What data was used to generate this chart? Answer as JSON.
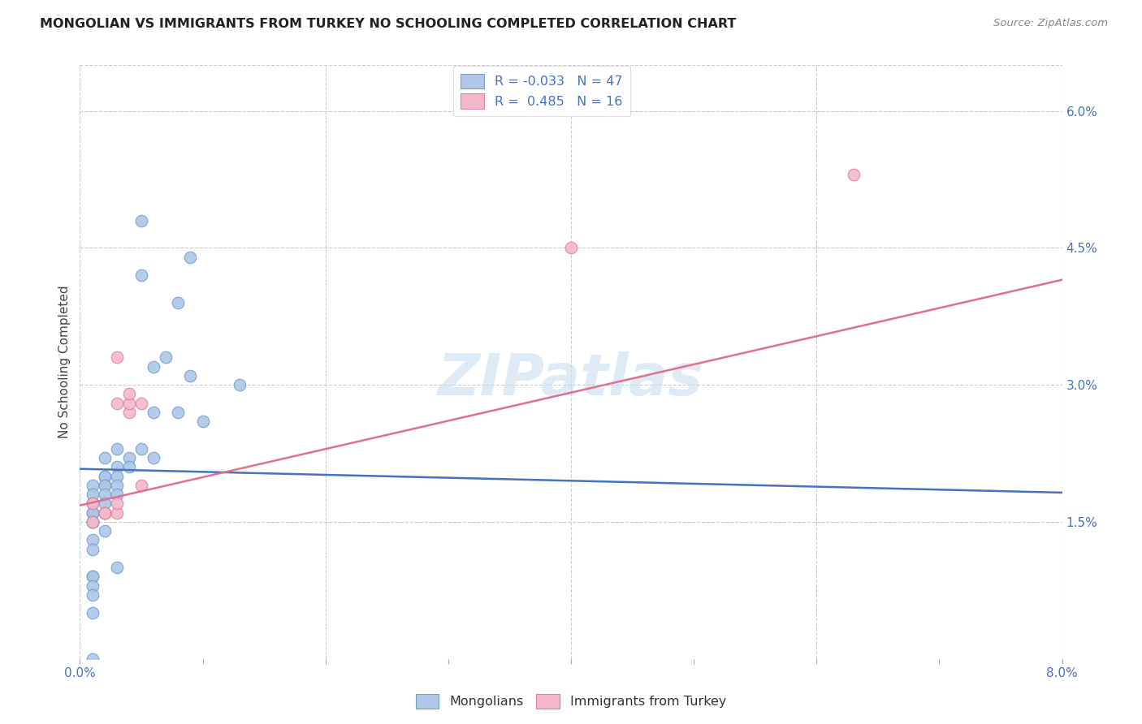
{
  "title": "MONGOLIAN VS IMMIGRANTS FROM TURKEY NO SCHOOLING COMPLETED CORRELATION CHART",
  "source": "Source: ZipAtlas.com",
  "ylabel": "No Schooling Completed",
  "xlim": [
    0.0,
    0.08
  ],
  "ylim": [
    0.0,
    0.065
  ],
  "xtick_positions": [
    0.0,
    0.01,
    0.02,
    0.03,
    0.04,
    0.05,
    0.06,
    0.07,
    0.08
  ],
  "xticklabels": [
    "0.0%",
    "",
    "",
    "",
    "",
    "",
    "",
    "",
    "8.0%"
  ],
  "ytick_positions": [
    0.015,
    0.03,
    0.045,
    0.06
  ],
  "yticklabels": [
    "1.5%",
    "3.0%",
    "4.5%",
    "6.0%"
  ],
  "legend_blue_r": "-0.033",
  "legend_blue_n": "47",
  "legend_pink_r": "0.485",
  "legend_pink_n": "16",
  "blue_scatter_color": "#aec6e8",
  "blue_edge_color": "#6fa0d0",
  "pink_scatter_color": "#f5b8c8",
  "pink_edge_color": "#e080a0",
  "blue_line_color": "#4472c4",
  "pink_line_color": "#e07090",
  "grid_color": "#cccccc",
  "title_color": "#222222",
  "source_color": "#888888",
  "tick_color": "#4472c4",
  "ylabel_color": "#444444",
  "watermark_color": "#c8dff0",
  "mongolians_x": [
    0.005,
    0.009,
    0.005,
    0.008,
    0.007,
    0.006,
    0.009,
    0.013,
    0.006,
    0.008,
    0.01,
    0.003,
    0.005,
    0.006,
    0.004,
    0.002,
    0.003,
    0.004,
    0.002,
    0.002,
    0.003,
    0.002,
    0.001,
    0.002,
    0.003,
    0.001,
    0.002,
    0.003,
    0.001,
    0.002,
    0.001,
    0.001,
    0.002,
    0.001,
    0.001,
    0.001,
    0.001,
    0.002,
    0.001,
    0.001,
    0.003,
    0.001,
    0.001,
    0.001,
    0.001,
    0.001,
    0.001
  ],
  "mongolians_y": [
    0.048,
    0.044,
    0.042,
    0.039,
    0.033,
    0.032,
    0.031,
    0.03,
    0.027,
    0.027,
    0.026,
    0.023,
    0.023,
    0.022,
    0.022,
    0.022,
    0.021,
    0.021,
    0.02,
    0.02,
    0.02,
    0.019,
    0.019,
    0.019,
    0.019,
    0.018,
    0.018,
    0.018,
    0.017,
    0.017,
    0.017,
    0.016,
    0.016,
    0.016,
    0.015,
    0.015,
    0.015,
    0.014,
    0.013,
    0.012,
    0.01,
    0.009,
    0.009,
    0.008,
    0.007,
    0.005,
    0.0
  ],
  "turkey_x": [
    0.001,
    0.002,
    0.002,
    0.001,
    0.002,
    0.003,
    0.003,
    0.003,
    0.004,
    0.004,
    0.004,
    0.005,
    0.005,
    0.063,
    0.04,
    0.003
  ],
  "turkey_y": [
    0.017,
    0.016,
    0.016,
    0.015,
    0.016,
    0.016,
    0.017,
    0.028,
    0.027,
    0.028,
    0.029,
    0.028,
    0.019,
    0.053,
    0.045,
    0.033
  ],
  "blue_trend": [
    0.0208,
    0.0182
  ],
  "pink_trend": [
    0.0168,
    0.0415
  ]
}
